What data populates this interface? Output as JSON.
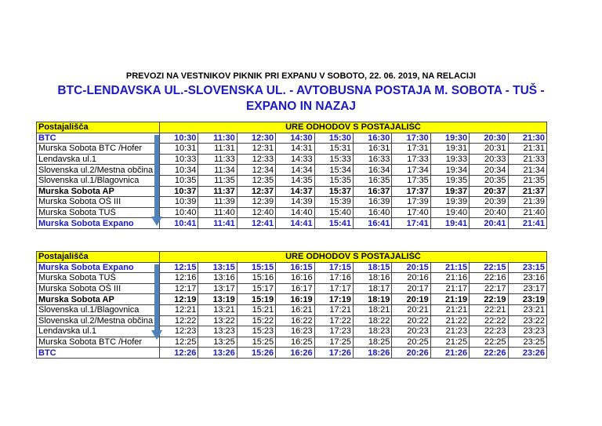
{
  "title": "PREVOZI NA VESTNIKOV PIKNIK PRI EXPANU V SOBOTO, 22. 06. 2019, NA RELACIJI",
  "route_line1": "BTC-LENDAVSKA UL.-SLOVENSKA UL. - AVTOBUSNA POSTAJA M. SOBOTA - TUŠ -",
  "route_line2": "EXPANO IN NAZAJ",
  "colors": {
    "header_bg": "#ffff00",
    "highlight_text": "#1a1acc",
    "arrow": "#4f81bd"
  },
  "tables": [
    {
      "col1": "Postajališča",
      "col2": "URE ODHODOV S POSTAJALIŠČ",
      "rows": [
        {
          "stop": "BTC",
          "style": "blue",
          "times": [
            "10:30",
            "11:30",
            "12:30",
            "14:30",
            "15:30",
            "16:30",
            "17:30",
            "19:30",
            "20:30",
            "21:30"
          ]
        },
        {
          "stop": "Murska Sobota BTC /Hofer",
          "style": "",
          "times": [
            "10:31",
            "11:31",
            "12:31",
            "14:31",
            "15:31",
            "16:31",
            "17:31",
            "19:31",
            "20:31",
            "21:31"
          ]
        },
        {
          "stop": "Lendavska ul.1",
          "style": "",
          "times": [
            "10:33",
            "11:33",
            "12:33",
            "14:33",
            "15:33",
            "16:33",
            "17:33",
            "19:33",
            "20:33",
            "21:33"
          ]
        },
        {
          "stop": "Slovenska ul.2/Mestna občina",
          "style": "",
          "times": [
            "10:34",
            "11:34",
            "12:34",
            "14:34",
            "15:34",
            "16:34",
            "17:34",
            "19:34",
            "20:34",
            "21:34"
          ]
        },
        {
          "stop": "Slovenska ul.1/Blagovnica",
          "style": "",
          "times": [
            "10:35",
            "11:35",
            "12:35",
            "14:35",
            "15:35",
            "16:35",
            "17:35",
            "19:35",
            "20:35",
            "21:35"
          ]
        },
        {
          "stop": "Murska Sobota AP",
          "style": "bold",
          "times": [
            "10:37",
            "11:37",
            "12:37",
            "14:37",
            "15:37",
            "16:37",
            "17:37",
            "19:37",
            "20:37",
            "21:37"
          ]
        },
        {
          "stop": "Murska Sobota OŠ III",
          "style": "",
          "times": [
            "10:39",
            "11:39",
            "12:39",
            "14:39",
            "15:39",
            "16:39",
            "17:39",
            "19:39",
            "20:39",
            "21:39"
          ]
        },
        {
          "stop": "Murska Sobota TUŠ",
          "style": "",
          "times": [
            "10:40",
            "11:40",
            "12:40",
            "14:40",
            "15:40",
            "16:40",
            "17:40",
            "19:40",
            "20:40",
            "21:40"
          ]
        },
        {
          "stop": "Murska Sobota Expano",
          "style": "blue",
          "times": [
            "10:41",
            "11:41",
            "12:41",
            "14:41",
            "15:41",
            "16:41",
            "17:41",
            "19:41",
            "20:41",
            "21:41"
          ]
        }
      ]
    },
    {
      "col1": "Postajališča",
      "col2": "URE ODHODOV S POSTAJALIŠČ",
      "rows": [
        {
          "stop": "Murska Sobota Expano",
          "style": "blue",
          "times": [
            "12:15",
            "13:15",
            "15:15",
            "16:15",
            "17:15",
            "18:15",
            "20:15",
            "21:15",
            "22:15",
            "23:15"
          ]
        },
        {
          "stop": "Murska Sobota TUŠ",
          "style": "",
          "times": [
            "12:16",
            "13:16",
            "15:16",
            "16:16",
            "17:16",
            "18:16",
            "20:16",
            "21:16",
            "22:16",
            "23:16"
          ]
        },
        {
          "stop": "Murska Sobota OŠ III",
          "style": "",
          "times": [
            "12:17",
            "13:17",
            "15:17",
            "16:17",
            "17:17",
            "18:17",
            "20:17",
            "21:17",
            "22:17",
            "23:17"
          ]
        },
        {
          "stop": "Murska Sobota AP",
          "style": "bold",
          "times": [
            "12:19",
            "13:19",
            "15:19",
            "16:19",
            "17:19",
            "18:19",
            "20:19",
            "21:19",
            "22:19",
            "23:19"
          ]
        },
        {
          "stop": "Slovenska ul.1/Blagovnica",
          "style": "",
          "times": [
            "12:21",
            "13:21",
            "15:21",
            "16:21",
            "17:21",
            "18:21",
            "20:21",
            "21:21",
            "22:21",
            "23:21"
          ]
        },
        {
          "stop": "Slovenska ul.2/Mestna občina",
          "style": "",
          "times": [
            "12:22",
            "13:22",
            "15:22",
            "16:22",
            "17:22",
            "18:22",
            "20:22",
            "21:22",
            "22:22",
            "23:22"
          ]
        },
        {
          "stop": "Lendavska ul.1",
          "style": "",
          "times": [
            "12:23",
            "13:23",
            "15:23",
            "16:23",
            "17:23",
            "18:23",
            "20:23",
            "21:23",
            "22:23",
            "23:23"
          ]
        },
        {
          "stop": "Murska Sobota BTC /Hofer",
          "style": "",
          "times": [
            "12:25",
            "13:25",
            "15:25",
            "16:25",
            "17:25",
            "18:25",
            "20:25",
            "21:25",
            "22:25",
            "23:25"
          ]
        },
        {
          "stop": "BTC",
          "style": "blue",
          "times": [
            "12:26",
            "13:26",
            "15:26",
            "16:26",
            "17:26",
            "18:26",
            "20:26",
            "21:26",
            "22:26",
            "23:26"
          ]
        }
      ]
    }
  ]
}
